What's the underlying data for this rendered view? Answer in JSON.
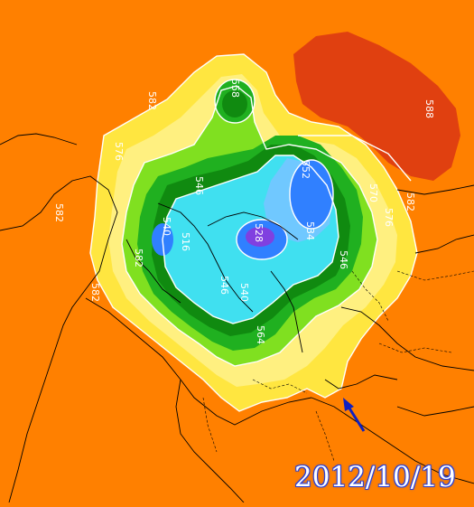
{
  "map": {
    "date": "2012/10/19",
    "contour_labels": [
      "582",
      "576",
      "582",
      "582",
      "588",
      "576",
      "582",
      "570",
      "558",
      "546",
      "540",
      "552",
      "528",
      "534",
      "546",
      "540",
      "516",
      "546",
      "564",
      "582"
    ],
    "colors": {
      "background": "#ff8000",
      "warm_ridge": "#e04010",
      "yellow_band": "#ffe640",
      "light_yellow": "#fff080",
      "green_light": "#80e020",
      "green": "#20b020",
      "green_dark": "#108a10",
      "cyan": "#40e0f0",
      "light_blue": "#70c8ff",
      "blue": "#3080ff",
      "purple": "#8040e0",
      "date_outline": "#2a40d8",
      "arrow": "#1020c0"
    },
    "arrow_icon": "arrow-pointer-icon"
  }
}
